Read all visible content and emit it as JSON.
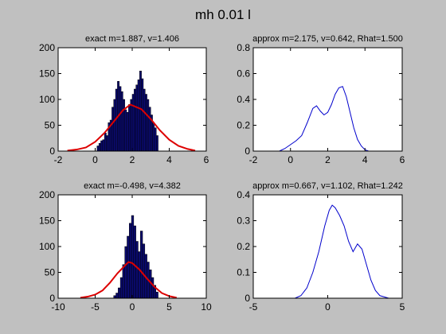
{
  "figure": {
    "title": "mh 0.01 l"
  },
  "chart_data": [
    {
      "type": "bar",
      "title": "exact m=1.887, v=1.406",
      "xlim": [
        -2,
        6
      ],
      "ylim": [
        0,
        200
      ],
      "xticks": [
        -2,
        0,
        2,
        4,
        6
      ],
      "yticks": [
        0,
        50,
        100,
        150,
        200
      ],
      "xticklabels": [
        "-2",
        "0",
        "2",
        "4",
        "6"
      ],
      "yticklabels": [
        "0",
        "50",
        "100",
        "150",
        "200"
      ],
      "bar_color": "#0a0a6e",
      "bins": {
        "start": 0.1,
        "width": 0.1,
        "values": [
          10,
          15,
          20,
          22,
          35,
          30,
          55,
          60,
          85,
          100,
          120,
          135,
          125,
          115,
          100,
          80,
          75,
          90,
          100,
          110,
          120,
          128,
          138,
          155,
          140,
          120,
          110,
          100,
          85,
          70,
          55,
          45,
          30
        ]
      },
      "curve": {
        "color": "#dd0000",
        "x": [
          -1.5,
          -1.0,
          -0.5,
          0.0,
          0.5,
          1.0,
          1.5,
          1.9,
          2.5,
          3.0,
          3.5,
          4.0,
          4.5,
          5.0,
          5.4
        ],
        "y": [
          1,
          3,
          7,
          18,
          35,
          57,
          79,
          90,
          81,
          62,
          40,
          22,
          10,
          4,
          1
        ]
      }
    },
    {
      "type": "line",
      "title": "approx m=2.175, v=0.642, Rhat=1.500",
      "xlim": [
        -2,
        6
      ],
      "ylim": [
        0,
        0.8
      ],
      "xticks": [
        -2,
        0,
        2,
        4,
        6
      ],
      "yticks": [
        0,
        0.2,
        0.4,
        0.6,
        0.8
      ],
      "xticklabels": [
        "-2",
        "0",
        "2",
        "4",
        "6"
      ],
      "yticklabels": [
        "0",
        "0.2",
        "0.4",
        "0.6",
        "0.8"
      ],
      "series": [
        {
          "color": "#0000cc",
          "x": [
            -0.6,
            -0.3,
            0.0,
            0.3,
            0.6,
            0.9,
            1.2,
            1.4,
            1.6,
            1.8,
            2.0,
            2.2,
            2.4,
            2.6,
            2.8,
            3.0,
            3.2,
            3.4,
            3.6,
            3.8,
            4.0,
            4.2
          ],
          "y": [
            0.0,
            0.02,
            0.05,
            0.08,
            0.12,
            0.22,
            0.33,
            0.35,
            0.31,
            0.28,
            0.3,
            0.36,
            0.44,
            0.49,
            0.5,
            0.42,
            0.3,
            0.18,
            0.09,
            0.04,
            0.01,
            0.0
          ]
        }
      ]
    },
    {
      "type": "bar",
      "title": "exact m=-0.498, v=4.382",
      "xlim": [
        -10,
        10
      ],
      "ylim": [
        0,
        200
      ],
      "xticks": [
        -10,
        -5,
        0,
        5,
        10
      ],
      "yticks": [
        0,
        50,
        100,
        150,
        200
      ],
      "xticklabels": [
        "-10",
        "-5",
        "0",
        "5",
        "10"
      ],
      "yticklabels": [
        "0",
        "50",
        "100",
        "150",
        "200"
      ],
      "bar_color": "#0a0a6e",
      "bins": {
        "start": -2.5,
        "width": 0.3,
        "values": [
          5,
          10,
          20,
          40,
          65,
          100,
          120,
          145,
          160,
          140,
          110,
          90,
          130,
          105,
          85,
          70,
          55,
          40,
          25,
          12
        ]
      },
      "curve": {
        "color": "#dd0000",
        "x": [
          -7,
          -6,
          -5,
          -4,
          -3,
          -2,
          -1,
          -0.5,
          0,
          1,
          2,
          3,
          4,
          5,
          6
        ],
        "y": [
          1,
          3,
          7,
          15,
          30,
          48,
          63,
          70,
          68,
          55,
          38,
          22,
          10,
          4,
          1
        ]
      }
    },
    {
      "type": "line",
      "title": "approx m=0.667, v=1.102, Rhat=1.242",
      "xlim": [
        -5,
        5
      ],
      "ylim": [
        0,
        0.4
      ],
      "xticks": [
        -5,
        0,
        5
      ],
      "yticks": [
        0,
        0.1,
        0.2,
        0.3,
        0.4
      ],
      "xticklabels": [
        "-5",
        "0",
        "5"
      ],
      "yticklabels": [
        "0",
        "0.1",
        "0.2",
        "0.3",
        "0.4"
      ],
      "series": [
        {
          "color": "#0000cc",
          "x": [
            -2.2,
            -1.8,
            -1.4,
            -1.0,
            -0.6,
            -0.2,
            0.1,
            0.3,
            0.5,
            0.8,
            1.1,
            1.4,
            1.7,
            2.0,
            2.3,
            2.6,
            2.9,
            3.2,
            3.5,
            3.8,
            4.1
          ],
          "y": [
            0.0,
            0.01,
            0.04,
            0.1,
            0.18,
            0.28,
            0.34,
            0.36,
            0.35,
            0.32,
            0.28,
            0.22,
            0.18,
            0.21,
            0.19,
            0.13,
            0.07,
            0.03,
            0.01,
            0.005,
            0.0
          ]
        }
      ]
    }
  ]
}
